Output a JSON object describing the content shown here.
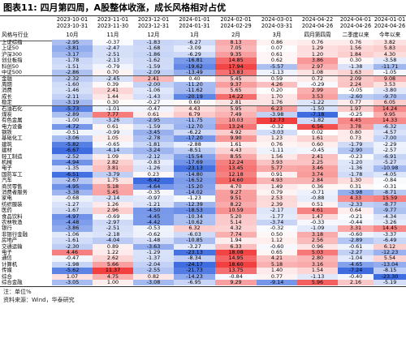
{
  "figure": {
    "label": "图表11:",
    "title": "四月第四周，A股整体收涨，成长风格相对占优",
    "unit_note": "注：单位%",
    "source_note": "资料来源：Wind，华泰研究"
  },
  "chart_data": {
    "type": "heatmap",
    "corner_label": "风格与行业",
    "columns": [
      {
        "period": "2023-10-01 2023-10-31",
        "label": "10月"
      },
      {
        "period": "2023-11-01 2023-11-30",
        "label": "11月"
      },
      {
        "period": "2023-12-01 2023-12-31",
        "label": "12月"
      },
      {
        "period": "2024-01-01 2024-01-31",
        "label": "1月"
      },
      {
        "period": "2024-02-01 2024-02-29",
        "label": "2月"
      },
      {
        "period": "2024-03-01 2024-03-31",
        "label": "3月"
      },
      {
        "period": "2024-04-22 2024-04-26",
        "label": "四月第四周"
      },
      {
        "period": "2024-04-01 2024-04-26",
        "label": "二季度以来"
      },
      {
        "period": "2024-01-01 2024-04-26",
        "label": "今年以来"
      }
    ],
    "groups": [
      {
        "rows": [
          {
            "name": "上证综指",
            "values": [
              -2.95,
              -0.37,
              -1.83,
              -6.27,
              8.13,
              0.86,
              0.76,
              0.76,
              3.82
            ]
          },
          {
            "name": "上证50",
            "values": [
              -3.81,
              -2.47,
              -1.68,
              -3.09,
              7.05,
              0.07,
              1.29,
              1.56,
              5.83
            ]
          },
          {
            "name": "沪深300",
            "values": [
              -3.17,
              -2.51,
              -1.86,
              -6.29,
              9.35,
              0.61,
              1.2,
              1.84,
              4.3
            ]
          },
          {
            "name": "创业板指",
            "values": [
              -1.78,
              -2.13,
              -1.62,
              -16.81,
              14.85,
              0.62,
              3.86,
              0.3,
              -3.58
            ]
          },
          {
            "name": "科创50",
            "values": [
              -1.51,
              -0.79,
              -1.59,
              -19.62,
              17.94,
              -5.57,
              2.97,
              -1.38,
              -11.71
            ]
          },
          {
            "name": "中证500",
            "values": [
              -2.86,
              0.7,
              -2.09,
              -13.49,
              13.83,
              -1.13,
              1.08,
              1.63,
              -1.05
            ]
          }
        ]
      },
      {
        "rows": [
          {
            "name": "金融",
            "values": [
              -2.32,
              -2.45,
              2.41,
              0.4,
              5.45,
              0.59,
              0.72,
              2.09,
              9.08
            ]
          },
          {
            "name": "周期",
            "values": [
              -1.6,
              0.39,
              -2.0,
              -11.2,
              9.37,
              4.26,
              -0.29,
              2.24,
              3.53
            ]
          },
          {
            "name": "消费",
            "values": [
              -1.46,
              2.41,
              -1.06,
              -11.62,
              5.65,
              0.2,
              2.99,
              -0.05,
              -3.8
            ]
          },
          {
            "name": "成长",
            "values": [
              -2.11,
              1.44,
              -1.43,
              -20.19,
              14.22,
              1.7,
              3.53,
              -2.6,
              -9.7
            ]
          },
          {
            "name": "稳定",
            "values": [
              -3.19,
              0.3,
              -0.27,
              0.6,
              2.81,
              1.76,
              -1.22,
              0.77,
              6.05
            ]
          }
        ]
      },
      {
        "rows": [
          {
            "name": "石油石化",
            "values": [
              -5.73,
              -1.01,
              -0.47,
              4.43,
              5.95,
              6.23,
              -1.5,
              1.97,
              14.24
            ]
          },
          {
            "name": "煤炭",
            "values": [
              -2.89,
              7.77,
              0.61,
              6.79,
              7.49,
              -3.98,
              -7.18,
              -0.25,
              9.95
            ]
          },
          {
            "name": "有色金属",
            "values": [
              -1.0,
              -3.26,
              -2.95,
              -11.75,
              10.03,
              12.73,
              -1.82,
              4.45,
              14.33
            ]
          },
          {
            "name": "电力设备",
            "values": [
              -4.72,
              0.61,
              -1.59,
              -12.7,
              13.24,
              -0.32,
              6.56,
              3.78,
              -6.32
            ]
          },
          {
            "name": "钢铁",
            "values": [
              -0.51,
              -0.99,
              -3.45,
              -6.22,
              4.92,
              -3.03,
              0.02,
              0.8,
              -4.57
            ]
          },
          {
            "name": "基础化工",
            "values": [
              -3.06,
              1.05,
              -2.78,
              -17.2,
              9.9,
              1.23,
              1.61,
              0.73,
              -7.0
            ]
          },
          {
            "name": "建筑",
            "values": [
              -5.82,
              -0.65,
              -1.81,
              -2.88,
              1.61,
              0.76,
              0.6,
              -1.79,
              -2.29
            ]
          },
          {
            "name": "建材",
            "values": [
              -6.67,
              -4.14,
              -3.24,
              -8.51,
              4.43,
              -1.11,
              -0.45,
              -2.9,
              -2.57
            ]
          },
          {
            "name": "轻工制造",
            "values": [
              -2.52,
              1.09,
              -2.12,
              -15.54,
              8.55,
              1.56,
              2.41,
              -0.23,
              -6.91
            ]
          },
          {
            "name": "机械",
            "values": [
              -4.94,
              2.82,
              -0.83,
              -17.69,
              12.24,
              3.93,
              2.25,
              -1.2,
              -5.27
            ]
          },
          {
            "name": "电子",
            "values": [
              -1.35,
              3.81,
              -1.26,
              -23.13,
              13.45,
              5.77,
              3.46,
              -1.36,
              -10.98
            ]
          },
          {
            "name": "国防军工",
            "values": [
              -6.51,
              -3.79,
              0.23,
              -14.8,
              12.18,
              0.91,
              3.74,
              -1.78,
              -4.05
            ]
          },
          {
            "name": "汽车",
            "values": [
              -2.67,
              1.75,
              -6.42,
              -16.52,
              14.6,
              4.93,
              2.84,
              1.3,
              -0.84
            ]
          },
          {
            "name": "商贸零售",
            "values": [
              -4.95,
              5.18,
              -4.64,
              -15.2,
              4.7,
              1.49,
              0.36,
              0.31,
              -0.31
            ]
          },
          {
            "name": "消费者服务",
            "values": [
              -3.38,
              5.45,
              -0.35,
              -14.02,
              9.27,
              0.79,
              -0.71,
              -3.98,
              -8.71
            ]
          },
          {
            "name": "家电",
            "values": [
              -0.68,
              -2.14,
              -0.97,
              -1.23,
              9.51,
              2.53,
              -0.88,
              4.33,
              15.59
            ]
          },
          {
            "name": "纺织服装",
            "values": [
              -1.27,
              1.26,
              -1.21,
              -12.39,
              8.22,
              2.39,
              0.51,
              -2.33,
              -8.77
            ]
          },
          {
            "name": "医药",
            "values": [
              -1.67,
              2.96,
              -4.5,
              -18.53,
              10.59,
              -2.17,
              4.61,
              0.64,
              -9.77
            ]
          },
          {
            "name": "食品饮料",
            "values": [
              -4.97,
              -0.69,
              -4.45,
              -10.34,
              5.2,
              -1.77,
              1.47,
              -0.21,
              -4.34
            ]
          },
          {
            "name": "农林牧渔",
            "values": [
              -4.48,
              -2.97,
              -4.42,
              -10.62,
              5.14,
              -3.74,
              -0.33,
              -0.44,
              -3.26
            ]
          },
          {
            "name": "银行",
            "values": [
              -3.86,
              -2.51,
              -0.53,
              6.32,
              4.32,
              -0.32,
              -1.09,
              3.31,
              14.45
            ]
          },
          {
            "name": "非银行金融",
            "values": [
              -1.06,
              -2.18,
              -0.62,
              -6.03,
              7.74,
              0.5,
              3.18,
              -0.6,
              -3.37
            ]
          },
          {
            "name": "房地产",
            "values": [
              -1.61,
              -4.04,
              -1.48,
              -10.85,
              1.94,
              1.12,
              2.56,
              -2.89,
              -6.49
            ]
          },
          {
            "name": "交通运输",
            "values": [
              -2.3,
              0.89,
              -3.63,
              -3.27,
              6.33,
              -0.6,
              0.96,
              -0.61,
              6.12
            ]
          },
          {
            "name": "电子",
            "values": [
              4.46,
              1.22,
              -1.29,
              -23.13,
              18.08,
              0.65,
              5.03,
              -2.27,
              -12.23
            ]
          },
          {
            "name": "通信",
            "values": [
              -0.47,
              2.62,
              -1.37,
              -8.34,
              14.95,
              4.21,
              2.8,
              -1.04,
              5.54
            ]
          },
          {
            "name": "计算机",
            "values": [
              -1.98,
              5.66,
              -2.04,
              -24.17,
              18.6,
              5.18,
              3.16,
              -4.65,
              -13.04
            ]
          },
          {
            "name": "传媒",
            "values": [
              -5.62,
              11.37,
              -2.55,
              -21.73,
              13.75,
              1.4,
              1.54,
              -7.24,
              -8.15
            ]
          },
          {
            "name": "综合",
            "values": [
              1.07,
              4.75,
              0.82,
              -14.23,
              -0.84,
              0.77,
              -1.13,
              -0.4,
              -23.3
            ]
          },
          {
            "name": "综合金融",
            "values": [
              -3.05,
              1.0,
              -3.08,
              -6.95,
              9.29,
              -9.14,
              5.96,
              2.16,
              -5.19
            ]
          }
        ]
      }
    ],
    "color_scale": {
      "positive": "#f23f3f",
      "negative": "#3f6de0",
      "zero": "#ffffff"
    }
  }
}
